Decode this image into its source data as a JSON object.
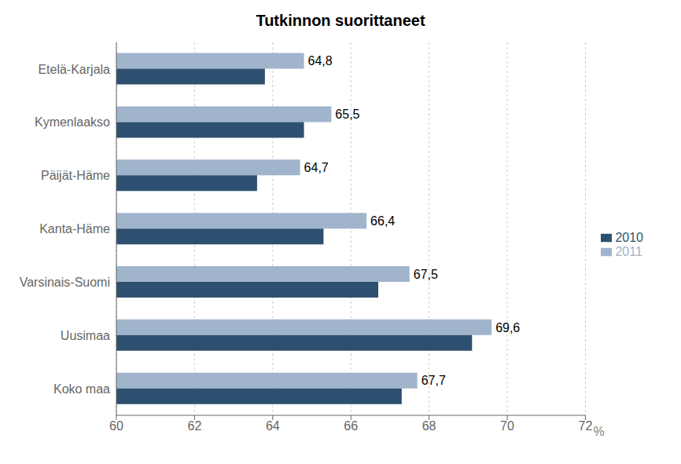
{
  "chart_data": {
    "type": "bar",
    "orientation": "horizontal",
    "title": "Tutkinnon suorittaneet",
    "xlabel": "%",
    "categories": [
      "Etelä-Karjala",
      "Kymenlaakso",
      "Päijät-Häme",
      "Kanta-Häme",
      "Varsinais-Suomi",
      "Uusimaa",
      "Koko maa"
    ],
    "series": [
      {
        "name": "2011",
        "color": "#a0b4cc",
        "values": [
          64.8,
          65.5,
          64.7,
          66.4,
          67.5,
          69.6,
          67.7
        ],
        "value_labels": [
          "64,8",
          "65,5",
          "64,7",
          "66,4",
          "67,5",
          "69,6",
          "67,7"
        ]
      },
      {
        "name": "2010",
        "color": "#2e5070",
        "values": [
          63.8,
          64.8,
          63.6,
          65.3,
          66.7,
          69.1,
          67.3
        ]
      }
    ],
    "xlim": [
      60,
      72
    ],
    "xticks": [
      60,
      62,
      64,
      66,
      68,
      70,
      72
    ],
    "grid": true,
    "legend": "right"
  }
}
